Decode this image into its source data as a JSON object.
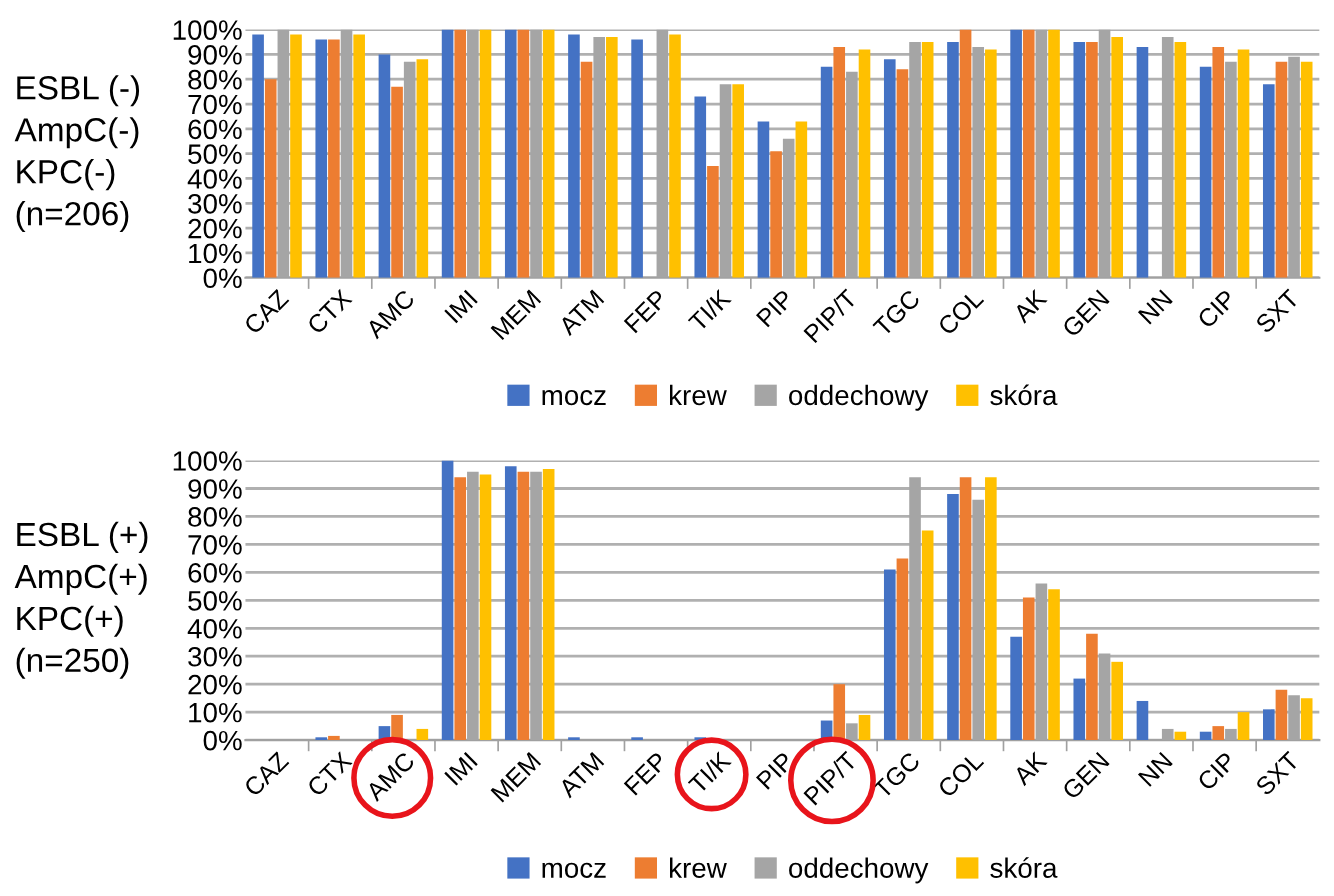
{
  "chart_data": [
    {
      "type": "bar",
      "annotations": [
        "ESBL (-)\nAmpC(-)\nKPC(-)\n(n=206)"
      ],
      "categories": [
        "CAZ",
        "CTX",
        "AMC",
        "IMI",
        "MEM",
        "ATM",
        "FEP",
        "TI/K",
        "PIP",
        "PIP/T",
        "TGC",
        "COL",
        "AK",
        "GEN",
        "NN",
        "CIP",
        "SXT"
      ],
      "series": [
        {
          "name": "mocz",
          "color": "#4472c4",
          "values": [
            98,
            96,
            90,
            100,
            100,
            98,
            96,
            73,
            63,
            85,
            88,
            95,
            100,
            95,
            93,
            85,
            78
          ]
        },
        {
          "name": "krew",
          "color": "#ed7d31",
          "values": [
            80,
            96,
            77,
            100,
            100,
            87,
            0,
            45,
            51,
            93,
            84,
            100,
            100,
            95,
            0,
            93,
            87
          ]
        },
        {
          "name": "oddechowy",
          "color": "#a5a5a5",
          "values": [
            100,
            100,
            87,
            100,
            100,
            97,
            100,
            78,
            56,
            83,
            95,
            93,
            100,
            100,
            97,
            87,
            89
          ]
        },
        {
          "name": "skóra",
          "color": "#ffc000",
          "values": [
            98,
            98,
            88,
            100,
            100,
            97,
            98,
            78,
            63,
            92,
            95,
            92,
            100,
            97,
            95,
            92,
            87
          ]
        }
      ],
      "ylim": [
        0,
        100
      ],
      "yticks": [
        {
          "value": 0,
          "label": "0%"
        },
        {
          "value": 10,
          "label": "10%"
        },
        {
          "value": 20,
          "label": "20%"
        },
        {
          "value": 30,
          "label": "30%"
        },
        {
          "value": 40,
          "label": "40%"
        },
        {
          "value": 50,
          "label": "50%"
        },
        {
          "value": 60,
          "label": "60%"
        },
        {
          "value": 70,
          "label": "70%"
        },
        {
          "value": 80,
          "label": "80%"
        },
        {
          "value": 90,
          "label": "90%"
        },
        {
          "value": 100,
          "label": "100%"
        }
      ],
      "grid": "y",
      "legend": "bottom"
    },
    {
      "type": "bar",
      "annotations": [
        "ESBL (+)\nAmpC(+)\nKPC(+)\n(n=250)"
      ],
      "categories": [
        "CAZ",
        "CTX",
        "AMC",
        "IMI",
        "MEM",
        "ATM",
        "FEP",
        "TI/K",
        "PIP",
        "PIP/T",
        "TGC",
        "COL",
        "AK",
        "GEN",
        "NN",
        "CIP",
        "SXT"
      ],
      "series": [
        {
          "name": "mocz",
          "color": "#4472c4",
          "values": [
            0,
            1,
            5,
            100,
            98,
            1,
            1,
            1,
            0,
            7,
            61,
            88,
            37,
            22,
            14,
            3,
            11
          ]
        },
        {
          "name": "krew",
          "color": "#ed7d31",
          "values": [
            0,
            1.5,
            9,
            94,
            96,
            0,
            0,
            0,
            0,
            20,
            65,
            94,
            51,
            38,
            0,
            5,
            18
          ]
        },
        {
          "name": "oddechowy",
          "color": "#a5a5a5",
          "values": [
            0,
            0,
            0,
            96,
            96,
            0,
            0,
            0,
            0,
            6,
            94,
            86,
            56,
            31,
            4,
            4,
            16
          ]
        },
        {
          "name": "skóra",
          "color": "#ffc000",
          "values": [
            0,
            0,
            4,
            95,
            97,
            0,
            0,
            0,
            0,
            9,
            75,
            94,
            54,
            28,
            3,
            10,
            15
          ]
        }
      ],
      "ylim": [
        0,
        100
      ],
      "yticks": [
        {
          "value": 0,
          "label": "0%"
        },
        {
          "value": 10,
          "label": "10%"
        },
        {
          "value": 20,
          "label": "20%"
        },
        {
          "value": 30,
          "label": "30%"
        },
        {
          "value": 40,
          "label": "40%"
        },
        {
          "value": 50,
          "label": "50%"
        },
        {
          "value": 60,
          "label": "60%"
        },
        {
          "value": 70,
          "label": "70%"
        },
        {
          "value": 80,
          "label": "80%"
        },
        {
          "value": 90,
          "label": "90%"
        },
        {
          "value": 100,
          "label": "100%"
        }
      ],
      "grid": "y",
      "legend": "bottom"
    }
  ]
}
